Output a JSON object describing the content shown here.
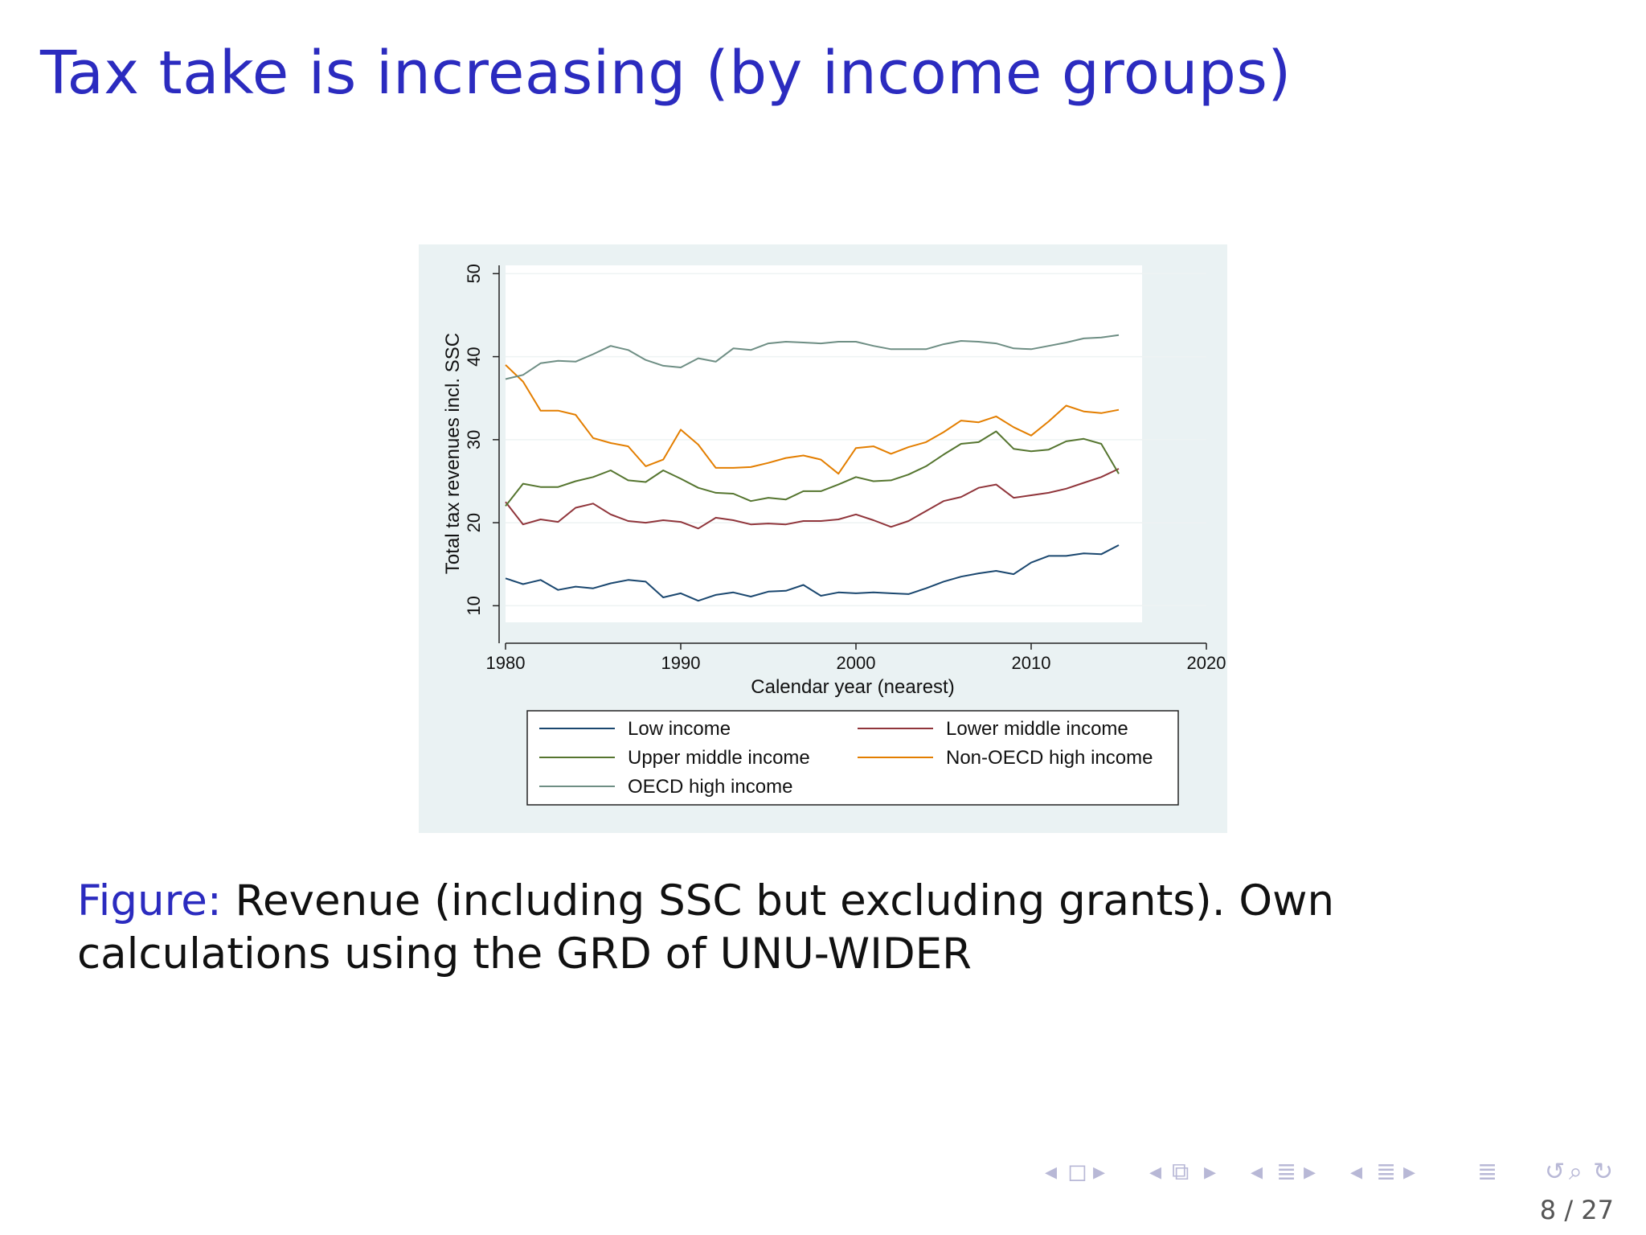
{
  "slide": {
    "title": "Tax take is increasing (by income groups)",
    "caption_label": "Figure:",
    "caption_text": "Revenue (including SSC but excluding grants). Own calculations using the GRD of UNU-WIDER",
    "page": "8 / 27"
  },
  "nav_icons": [
    "arrow-left",
    "frame-icon",
    "arrow-right",
    "arrow-left",
    "subsection-icon",
    "arrow-right",
    "arrow-left",
    "section-icon",
    "arrow-right",
    "arrow-left",
    "align-icon",
    "arrow-right",
    "align-icon",
    "search-icon",
    "undo-icon",
    "redo-icon"
  ],
  "chart_data": {
    "type": "line",
    "xlabel": "Calendar year (nearest)",
    "ylabel": "Total tax revenues incl. SSC",
    "xlim": [
      1980,
      2020
    ],
    "ylim": [
      8,
      51
    ],
    "xticks": [
      1980,
      1990,
      2000,
      2010,
      2020
    ],
    "yticks": [
      10,
      20,
      30,
      40,
      50
    ],
    "grid": "horizontal",
    "legend_placement": "bottom",
    "x": [
      1980,
      1981,
      1982,
      1983,
      1984,
      1985,
      1986,
      1987,
      1988,
      1989,
      1990,
      1991,
      1992,
      1993,
      1994,
      1995,
      1996,
      1997,
      1998,
      1999,
      2000,
      2001,
      2002,
      2003,
      2004,
      2005,
      2006,
      2007,
      2008,
      2009,
      2010,
      2011,
      2012,
      2013,
      2014,
      2015
    ],
    "series": [
      {
        "name": "Low income",
        "color": "#1a476f",
        "values": [
          13.3,
          12.6,
          13.1,
          11.9,
          12.3,
          12.1,
          12.7,
          13.1,
          12.9,
          11.0,
          11.5,
          10.6,
          11.3,
          11.6,
          11.1,
          11.7,
          11.8,
          12.5,
          11.2,
          11.6,
          11.5,
          11.6,
          11.5,
          11.4,
          12.1,
          12.9,
          13.5,
          13.9,
          14.2,
          13.8,
          15.2,
          16.0,
          16.0,
          16.3,
          16.2,
          17.3
        ]
      },
      {
        "name": "Lower middle income",
        "color": "#90353b",
        "values": [
          22.5,
          19.8,
          20.4,
          20.1,
          21.8,
          22.3,
          21.0,
          20.2,
          20.0,
          20.3,
          20.1,
          19.3,
          20.6,
          20.3,
          19.8,
          19.9,
          19.8,
          20.2,
          20.2,
          20.4,
          21.0,
          20.3,
          19.5,
          20.2,
          21.4,
          22.6,
          23.1,
          24.2,
          24.6,
          23.0,
          23.3,
          23.6,
          24.1,
          24.8,
          25.5,
          26.5
        ]
      },
      {
        "name": "Upper middle income",
        "color": "#55752f",
        "values": [
          22.0,
          24.7,
          24.3,
          24.3,
          25.0,
          25.5,
          26.3,
          25.1,
          24.9,
          26.3,
          25.3,
          24.2,
          23.6,
          23.5,
          22.6,
          23.0,
          22.8,
          23.8,
          23.8,
          24.6,
          25.5,
          25.0,
          25.1,
          25.8,
          26.8,
          28.2,
          29.5,
          29.7,
          31.0,
          28.9,
          28.6,
          28.8,
          29.8,
          30.1,
          29.5,
          25.9
        ]
      },
      {
        "name": "Non-OECD high income",
        "color": "#e37e00",
        "values": [
          39.0,
          37.0,
          33.5,
          33.5,
          33.0,
          30.2,
          29.6,
          29.2,
          26.8,
          27.6,
          31.2,
          29.4,
          26.6,
          26.6,
          26.7,
          27.2,
          27.8,
          28.1,
          27.6,
          25.9,
          29.0,
          29.2,
          28.3,
          29.1,
          29.7,
          30.9,
          32.3,
          32.1,
          32.8,
          31.5,
          30.5,
          32.2,
          34.1,
          33.4,
          33.2,
          33.6
        ]
      },
      {
        "name": "OECD high income",
        "color": "#6e8e84",
        "values": [
          37.3,
          37.8,
          39.2,
          39.5,
          39.4,
          40.3,
          41.3,
          40.8,
          39.6,
          38.9,
          38.7,
          39.8,
          39.4,
          41.0,
          40.8,
          41.6,
          41.8,
          41.7,
          41.6,
          41.8,
          41.8,
          41.3,
          40.9,
          40.9,
          40.9,
          41.5,
          41.9,
          41.8,
          41.6,
          41.0,
          40.9,
          41.3,
          41.7,
          42.2,
          42.3,
          42.6
        ]
      }
    ]
  }
}
